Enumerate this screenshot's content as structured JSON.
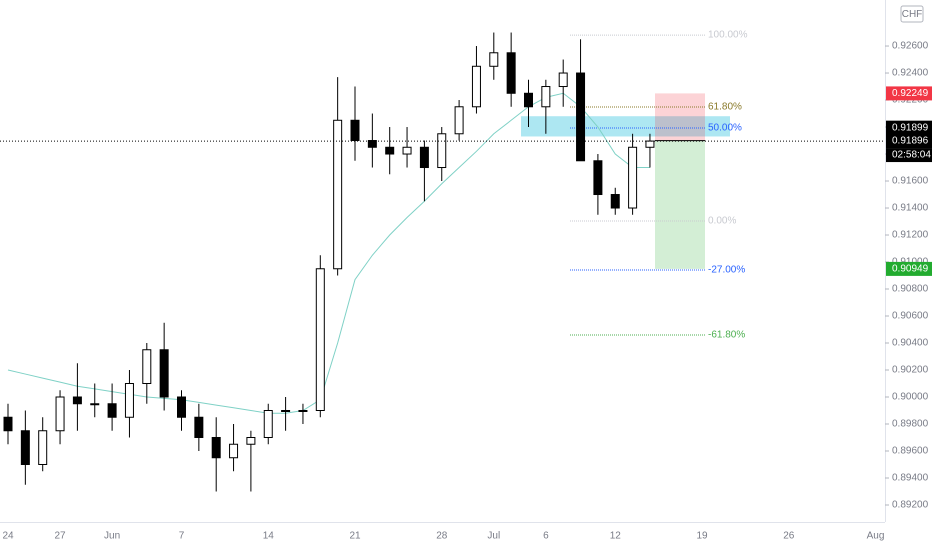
{
  "chart_data": {
    "type": "candlestick",
    "currency": "CHF",
    "categories": [
      "24",
      null,
      null,
      "27",
      null,
      null,
      "Jun",
      null,
      null,
      null,
      "7",
      null,
      null,
      null,
      null,
      "14",
      null,
      null,
      null,
      null,
      "21",
      null,
      null,
      null,
      null,
      "28",
      null,
      null,
      "Jul",
      null,
      null,
      "6",
      null,
      null,
      null,
      "12",
      null,
      null,
      null,
      null,
      "19",
      null,
      null,
      null,
      null,
      "26",
      null,
      null,
      null,
      null,
      "Aug"
    ],
    "open": [
      0.8985,
      0.8975,
      0.895,
      0.8975,
      0.9,
      0.8995,
      0.8995,
      0.8985,
      0.901,
      0.9035,
      0.9,
      0.8985,
      0.897,
      0.8955,
      0.8965,
      0.897,
      0.899,
      0.899,
      0.899,
      0.9095,
      0.9205,
      0.919,
      0.9185,
      0.918,
      0.9185,
      0.917,
      0.9195,
      0.9215,
      0.9245,
      0.9255,
      0.9225,
      0.9215,
      0.923,
      0.924,
      0.9175,
      0.915,
      0.914,
      0.9185,
      null,
      null,
      null,
      null,
      null,
      null,
      null,
      null,
      null,
      null,
      null,
      null,
      null
    ],
    "high": [
      0.8995,
      0.899,
      0.8985,
      0.9005,
      0.9025,
      0.901,
      0.901,
      0.902,
      0.904,
      0.9055,
      0.9005,
      0.8995,
      0.8985,
      0.898,
      0.8975,
      0.8995,
      0.9,
      0.8995,
      0.9105,
      0.9237,
      0.923,
      0.921,
      0.92,
      0.92,
      0.919,
      0.92,
      0.922,
      0.926,
      0.927,
      0.927,
      0.9235,
      0.9235,
      0.925,
      0.9265,
      0.918,
      0.9155,
      0.9195,
      0.9195,
      null,
      null,
      null,
      null,
      null,
      null,
      null,
      null,
      null,
      null,
      null,
      null,
      null
    ],
    "low": [
      0.8965,
      0.8935,
      0.8945,
      0.8965,
      0.8975,
      0.8985,
      0.8975,
      0.897,
      0.8995,
      0.899,
      0.8975,
      0.896,
      0.893,
      0.8945,
      0.893,
      0.8965,
      0.8975,
      0.898,
      0.8985,
      0.909,
      0.9175,
      0.917,
      0.9165,
      0.917,
      0.9145,
      0.916,
      0.919,
      0.921,
      0.9235,
      0.9215,
      0.92,
      0.9195,
      0.9215,
      0.9175,
      0.9135,
      0.9135,
      0.9135,
      0.917,
      null,
      null,
      null,
      null,
      null,
      null,
      null,
      null,
      null,
      null,
      null,
      null,
      null
    ],
    "close": [
      0.8975,
      0.895,
      0.8975,
      0.9,
      0.8995,
      0.8995,
      0.8985,
      0.901,
      0.9035,
      0.9,
      0.8985,
      0.897,
      0.8955,
      0.8965,
      0.897,
      0.899,
      0.899,
      0.899,
      0.9095,
      0.9205,
      0.919,
      0.9185,
      0.918,
      0.9185,
      0.917,
      0.9195,
      0.9215,
      0.9245,
      0.9255,
      0.9225,
      0.9215,
      0.923,
      0.924,
      0.9175,
      0.915,
      0.914,
      0.9185,
      0.91896,
      null,
      null,
      null,
      null,
      null,
      null,
      null,
      null,
      null,
      null,
      null,
      null,
      null
    ],
    "up_color": "#ffffff",
    "down_color": "#000000",
    "border_color": "#000000",
    "overlay": {
      "color": "#7fd1c6",
      "values": [
        0.902,
        0.9017,
        0.9014,
        0.9011,
        0.9008,
        0.9006,
        0.9004,
        0.9002,
        0.9,
        0.8999,
        0.8998,
        0.8996,
        0.8994,
        0.8992,
        0.899,
        0.8988,
        0.8988,
        0.899,
        0.8998,
        0.904,
        0.9087,
        0.9105,
        0.912,
        0.9133,
        0.9145,
        0.9158,
        0.917,
        0.9182,
        0.9195,
        0.9205,
        0.9215,
        0.9222,
        0.9225,
        0.9215,
        0.92,
        0.918,
        0.917,
        0.917,
        null,
        null,
        null,
        null,
        null,
        null,
        null,
        null,
        null,
        null,
        null,
        null,
        null
      ]
    },
    "ylim": [
      0.89074,
      0.92941
    ],
    "yticks": [
      {
        "value": 0.892,
        "label": "0.89200"
      },
      {
        "value": 0.894,
        "label": "0.89400"
      },
      {
        "value": 0.896,
        "label": "0.89600"
      },
      {
        "value": 0.898,
        "label": "0.89800"
      },
      {
        "value": 0.9,
        "label": "0.90000"
      },
      {
        "value": 0.902,
        "label": "0.90200"
      },
      {
        "value": 0.904,
        "label": "0.90400"
      },
      {
        "value": 0.906,
        "label": "0.90600"
      },
      {
        "value": 0.908,
        "label": "0.90800"
      },
      {
        "value": 0.91,
        "label": "0.91000"
      },
      {
        "value": 0.912,
        "label": "0.91200"
      },
      {
        "value": 0.914,
        "label": "0.91400"
      },
      {
        "value": 0.916,
        "label": "0.91600"
      },
      {
        "value": 0.918,
        "label": "0.91800"
      },
      {
        "value": 0.92,
        "label": "0.92000"
      },
      {
        "value": 0.922,
        "label": "0.92200"
      },
      {
        "value": 0.924,
        "label": "0.92400"
      },
      {
        "value": 0.926,
        "label": "0.92600"
      }
    ],
    "grid": false,
    "zone": {
      "top": 0.9208,
      "bottom": 0.9193,
      "color": "#9fe3f0"
    },
    "fib_levels": [
      {
        "label": "100.00%",
        "price": 0.92681,
        "color": "#c8cad0"
      },
      {
        "label": "61.80%",
        "price": 0.92148,
        "color": "#8a7a2a"
      },
      {
        "label": "50.00%",
        "price": 0.91993,
        "color": "#2962ff"
      },
      {
        "label": "0.00%",
        "price": 0.91304,
        "color": "#c8cad0"
      },
      {
        "label": "-27.00%",
        "price": 0.90941,
        "color": "#2962ff"
      },
      {
        "label": "-61.80%",
        "price": 0.90459,
        "color": "#4caf50"
      }
    ],
    "position": {
      "stop": {
        "value": 0.92249,
        "label": "0.92249",
        "color": "#f23645"
      },
      "entry": {
        "value": 0.91899,
        "label": "0.91899"
      },
      "target": {
        "value": 0.90949,
        "label": "0.90949",
        "color": "#22ab2f"
      }
    },
    "last_price": {
      "value": 0.91896,
      "label": "0.91896",
      "countdown": "02:58:04"
    }
  }
}
